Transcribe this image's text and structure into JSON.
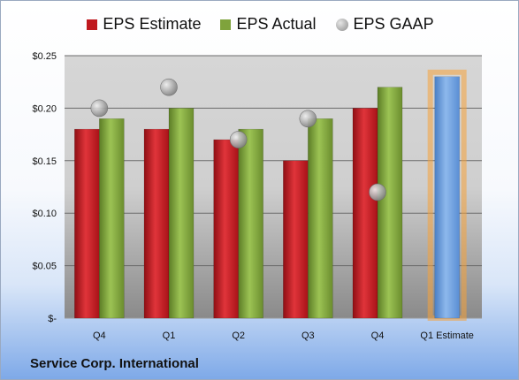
{
  "chart_data": {
    "type": "bar",
    "categories": [
      "Q4",
      "Q1",
      "Q2",
      "Q3",
      "Q4",
      "Q1 Estimate"
    ],
    "series": [
      {
        "name": "EPS Estimate",
        "type": "bar",
        "color": "#c0191f",
        "values": [
          0.18,
          0.18,
          0.17,
          0.15,
          0.2,
          null
        ]
      },
      {
        "name": "EPS Actual",
        "type": "bar",
        "color": "#7fa33c",
        "values": [
          0.19,
          0.2,
          0.18,
          0.19,
          0.22,
          null
        ]
      },
      {
        "name": "EPS GAAP",
        "type": "scatter",
        "color": "#9a9a9a",
        "values": [
          0.2,
          0.22,
          0.17,
          0.19,
          0.12,
          null
        ]
      }
    ],
    "projection": {
      "category": "Q1 Estimate",
      "value": 0.23,
      "color": "#6e9fdc",
      "glow": "#f5a23a"
    },
    "ylim": [
      0,
      0.25
    ],
    "yticks": [
      0,
      0.05,
      0.1,
      0.15,
      0.2,
      0.25
    ],
    "ytick_labels": [
      "$-",
      "$0.05",
      "$0.10",
      "$0.15",
      "$0.20",
      "$0.25"
    ],
    "grid": true,
    "legend_position": "top",
    "title": "",
    "xlabel": "",
    "ylabel": ""
  },
  "company": "Service Corp. International"
}
